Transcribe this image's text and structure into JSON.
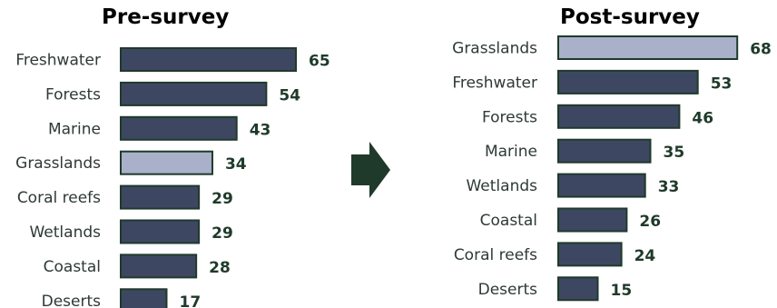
{
  "accent_colors": {
    "bar_fill": "#3e4762",
    "bar_highlight_fill": "#a9b0c9",
    "bar_border": "#1f3a2a",
    "value_label": "#1f3a2a",
    "arrow": "#1f3a2a"
  },
  "arrow_icon": "right-arrow-icon",
  "chart_data": [
    {
      "type": "bar",
      "orientation": "horizontal",
      "title": "Pre-survey",
      "categories": [
        "Freshwater",
        "Forests",
        "Marine",
        "Grasslands",
        "Coral reefs",
        "Wetlands",
        "Coastal",
        "Deserts"
      ],
      "values": [
        65,
        54,
        43,
        34,
        29,
        29,
        28,
        17
      ],
      "highlight": "Grasslands",
      "grid": false,
      "data_labels": true
    },
    {
      "type": "bar",
      "orientation": "horizontal",
      "title": "Post-survey",
      "categories": [
        "Grasslands",
        "Freshwater",
        "Forests",
        "Marine",
        "Wetlands",
        "Coastal",
        "Coral reefs",
        "Deserts"
      ],
      "values": [
        68,
        53,
        46,
        35,
        33,
        26,
        24,
        15
      ],
      "highlight": "Grasslands",
      "grid": false,
      "data_labels": true
    }
  ]
}
